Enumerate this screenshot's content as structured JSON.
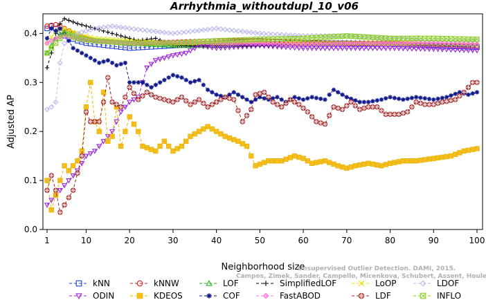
{
  "chart_data": {
    "type": "line",
    "title": "Arrhythmia_withoutdupl_10_v06",
    "xlabel": "Neighborhood size",
    "ylabel": "Adjusted AP",
    "xlim": [
      1,
      100
    ],
    "ylim": [
      0,
      0.44
    ],
    "xticks": [
      1,
      10,
      20,
      30,
      40,
      50,
      60,
      70,
      80,
      90,
      100
    ],
    "yticks": [
      0.0,
      0.1,
      0.2,
      0.3,
      0.4
    ],
    "ytick_labels": [
      "0.0",
      "0.1",
      "0.2",
      "0.3",
      "0.4"
    ],
    "grid": false,
    "legend_position": "bottom",
    "watermark": [
      "Unsupervised Outlier Detection. DAMI, 2015.",
      "Campos, Zimek, Sander, Campello, Micenkova, Schubert, Assent, Houle"
    ],
    "series": [
      {
        "name": "kNN",
        "color": "#1f3fdc",
        "marker": "square",
        "keypoints": [
          [
            1,
            0.41
          ],
          [
            2,
            0.415
          ],
          [
            3,
            0.41
          ],
          [
            5,
            0.395
          ],
          [
            8,
            0.385
          ],
          [
            10,
            0.38
          ],
          [
            15,
            0.375
          ],
          [
            20,
            0.37
          ],
          [
            30,
            0.375
          ],
          [
            40,
            0.38
          ],
          [
            50,
            0.385
          ],
          [
            60,
            0.38
          ],
          [
            70,
            0.38
          ],
          [
            80,
            0.378
          ],
          [
            90,
            0.375
          ],
          [
            100,
            0.372
          ]
        ]
      },
      {
        "name": "kNNW",
        "color": "#d62020",
        "marker": "circle",
        "keypoints": [
          [
            1,
            0.415
          ],
          [
            3,
            0.418
          ],
          [
            5,
            0.41
          ],
          [
            8,
            0.395
          ],
          [
            12,
            0.385
          ],
          [
            20,
            0.38
          ],
          [
            30,
            0.382
          ],
          [
            40,
            0.385
          ],
          [
            50,
            0.385
          ],
          [
            60,
            0.382
          ],
          [
            70,
            0.38
          ],
          [
            80,
            0.38
          ],
          [
            90,
            0.378
          ],
          [
            100,
            0.375
          ]
        ]
      },
      {
        "name": "LOF",
        "color": "#22b022",
        "marker": "triangle",
        "keypoints": [
          [
            1,
            0.36
          ],
          [
            3,
            0.39
          ],
          [
            5,
            0.405
          ],
          [
            8,
            0.395
          ],
          [
            12,
            0.385
          ],
          [
            20,
            0.38
          ],
          [
            30,
            0.375
          ],
          [
            40,
            0.375
          ],
          [
            50,
            0.378
          ],
          [
            60,
            0.38
          ],
          [
            70,
            0.382
          ],
          [
            80,
            0.38
          ],
          [
            90,
            0.38
          ],
          [
            100,
            0.378
          ]
        ]
      },
      {
        "name": "SimplifiedLOF",
        "color": "#000000",
        "marker": "plus",
        "keypoints": [
          [
            1,
            0.33
          ],
          [
            2,
            0.36
          ],
          [
            3,
            0.4
          ],
          [
            4,
            0.42
          ],
          [
            5,
            0.43
          ],
          [
            8,
            0.42
          ],
          [
            12,
            0.41
          ],
          [
            18,
            0.395
          ],
          [
            22,
            0.385
          ],
          [
            26,
            0.39
          ],
          [
            30,
            0.375
          ],
          [
            40,
            0.375
          ],
          [
            50,
            0.375
          ],
          [
            60,
            0.377
          ],
          [
            70,
            0.38
          ],
          [
            80,
            0.38
          ],
          [
            90,
            0.378
          ],
          [
            100,
            0.378
          ]
        ]
      },
      {
        "name": "LoOP",
        "color": "#e8e000",
        "marker": "x",
        "keypoints": [
          [
            1,
            0.38
          ],
          [
            3,
            0.405
          ],
          [
            5,
            0.41
          ],
          [
            8,
            0.4
          ],
          [
            12,
            0.39
          ],
          [
            20,
            0.385
          ],
          [
            30,
            0.38
          ],
          [
            40,
            0.38
          ],
          [
            50,
            0.382
          ],
          [
            60,
            0.38
          ],
          [
            70,
            0.38
          ],
          [
            80,
            0.38
          ],
          [
            90,
            0.382
          ],
          [
            100,
            0.38
          ]
        ]
      },
      {
        "name": "LDOF",
        "color": "#b8b8f0",
        "marker": "diamond",
        "keypoints": [
          [
            1,
            0.245
          ],
          [
            2,
            0.25
          ],
          [
            3,
            0.26
          ],
          [
            4,
            0.34
          ],
          [
            5,
            0.38
          ],
          [
            8,
            0.4
          ],
          [
            12,
            0.41
          ],
          [
            16,
            0.415
          ],
          [
            20,
            0.41
          ],
          [
            25,
            0.405
          ],
          [
            30,
            0.4
          ],
          [
            35,
            0.405
          ],
          [
            40,
            0.41
          ],
          [
            50,
            0.4
          ],
          [
            60,
            0.395
          ],
          [
            70,
            0.395
          ],
          [
            80,
            0.39
          ],
          [
            90,
            0.385
          ],
          [
            100,
            0.385
          ]
        ]
      },
      {
        "name": "ODIN",
        "color": "#9a22d6",
        "marker": "triangle-down",
        "keypoints": [
          [
            1,
            0.05
          ],
          [
            2,
            0.06
          ],
          [
            4,
            0.08
          ],
          [
            6,
            0.1
          ],
          [
            8,
            0.12
          ],
          [
            10,
            0.15
          ],
          [
            12,
            0.16
          ],
          [
            14,
            0.18
          ],
          [
            16,
            0.2
          ],
          [
            18,
            0.24
          ],
          [
            20,
            0.26
          ],
          [
            22,
            0.27
          ],
          [
            23,
            0.3
          ],
          [
            24,
            0.33
          ],
          [
            26,
            0.345
          ],
          [
            30,
            0.355
          ],
          [
            33,
            0.36
          ],
          [
            36,
            0.375
          ],
          [
            40,
            0.37
          ],
          [
            50,
            0.375
          ],
          [
            60,
            0.37
          ],
          [
            70,
            0.37
          ],
          [
            80,
            0.37
          ],
          [
            90,
            0.368
          ],
          [
            100,
            0.365
          ]
        ]
      },
      {
        "name": "KDEOS",
        "color": "#f0b400",
        "marker": "square-x",
        "keypoints": [
          [
            1,
            0.1
          ],
          [
            2,
            0.04
          ],
          [
            3,
            0.07
          ],
          [
            4,
            0.1
          ],
          [
            5,
            0.13
          ],
          [
            6,
            0.12
          ],
          [
            8,
            0.14
          ],
          [
            9,
            0.16
          ],
          [
            10,
            0.25
          ],
          [
            11,
            0.3
          ],
          [
            12,
            0.22
          ],
          [
            13,
            0.2
          ],
          [
            14,
            0.28
          ],
          [
            15,
            0.18
          ],
          [
            16,
            0.19
          ],
          [
            17,
            0.25
          ],
          [
            18,
            0.17
          ],
          [
            20,
            0.23
          ],
          [
            22,
            0.2
          ],
          [
            23,
            0.17
          ],
          [
            26,
            0.16
          ],
          [
            28,
            0.18
          ],
          [
            30,
            0.16
          ],
          [
            32,
            0.17
          ],
          [
            34,
            0.19
          ],
          [
            36,
            0.2
          ],
          [
            38,
            0.21
          ],
          [
            40,
            0.2
          ],
          [
            42,
            0.19
          ],
          [
            45,
            0.18
          ],
          [
            47,
            0.17
          ],
          [
            49,
            0.13
          ],
          [
            52,
            0.14
          ],
          [
            55,
            0.14
          ],
          [
            58,
            0.15
          ],
          [
            60,
            0.145
          ],
          [
            62,
            0.135
          ],
          [
            65,
            0.14
          ],
          [
            68,
            0.13
          ],
          [
            70,
            0.125
          ],
          [
            72,
            0.13
          ],
          [
            75,
            0.135
          ],
          [
            78,
            0.13
          ],
          [
            80,
            0.135
          ],
          [
            83,
            0.14
          ],
          [
            86,
            0.14
          ],
          [
            90,
            0.145
          ],
          [
            94,
            0.15
          ],
          [
            97,
            0.16
          ],
          [
            100,
            0.165
          ]
        ]
      },
      {
        "name": "COF",
        "color": "#101a8c",
        "marker": "star",
        "keypoints": [
          [
            1,
            0.39
          ],
          [
            2,
            0.41
          ],
          [
            3,
            0.405
          ],
          [
            4,
            0.41
          ],
          [
            5,
            0.4
          ],
          [
            7,
            0.37
          ],
          [
            9,
            0.36
          ],
          [
            11,
            0.35
          ],
          [
            13,
            0.34
          ],
          [
            15,
            0.345
          ],
          [
            17,
            0.335
          ],
          [
            19,
            0.34
          ],
          [
            20,
            0.3
          ],
          [
            23,
            0.3
          ],
          [
            25,
            0.29
          ],
          [
            28,
            0.305
          ],
          [
            30,
            0.315
          ],
          [
            32,
            0.31
          ],
          [
            34,
            0.3
          ],
          [
            36,
            0.305
          ],
          [
            38,
            0.285
          ],
          [
            40,
            0.275
          ],
          [
            42,
            0.27
          ],
          [
            44,
            0.28
          ],
          [
            46,
            0.27
          ],
          [
            48,
            0.26
          ],
          [
            50,
            0.27
          ],
          [
            52,
            0.265
          ],
          [
            54,
            0.27
          ],
          [
            56,
            0.26
          ],
          [
            58,
            0.27
          ],
          [
            60,
            0.265
          ],
          [
            62,
            0.27
          ],
          [
            65,
            0.265
          ],
          [
            67,
            0.285
          ],
          [
            70,
            0.27
          ],
          [
            73,
            0.26
          ],
          [
            75,
            0.26
          ],
          [
            78,
            0.265
          ],
          [
            80,
            0.27
          ],
          [
            83,
            0.265
          ],
          [
            86,
            0.27
          ],
          [
            90,
            0.265
          ],
          [
            93,
            0.27
          ],
          [
            96,
            0.28
          ],
          [
            98,
            0.275
          ],
          [
            100,
            0.28
          ]
        ]
      },
      {
        "name": "FastABOD",
        "color": "#ff70e0",
        "marker": "diamond-filled",
        "keypoints": [
          [
            1,
            0.38
          ],
          [
            3,
            0.39
          ],
          [
            5,
            0.395
          ],
          [
            8,
            0.39
          ],
          [
            12,
            0.385
          ],
          [
            20,
            0.38
          ],
          [
            30,
            0.382
          ],
          [
            40,
            0.38
          ],
          [
            50,
            0.38
          ],
          [
            60,
            0.378
          ],
          [
            70,
            0.38
          ],
          [
            80,
            0.38
          ],
          [
            90,
            0.38
          ],
          [
            100,
            0.378
          ]
        ]
      },
      {
        "name": "LDF",
        "color": "#a02020",
        "marker": "circle-plus",
        "keypoints": [
          [
            1,
            0.08
          ],
          [
            2,
            0.11
          ],
          [
            3,
            0.08
          ],
          [
            4,
            0.035
          ],
          [
            5,
            0.05
          ],
          [
            7,
            0.08
          ],
          [
            9,
            0.15
          ],
          [
            10,
            0.24
          ],
          [
            11,
            0.22
          ],
          [
            13,
            0.22
          ],
          [
            14,
            0.26
          ],
          [
            15,
            0.31
          ],
          [
            16,
            0.26
          ],
          [
            18,
            0.25
          ],
          [
            20,
            0.29
          ],
          [
            22,
            0.265
          ],
          [
            24,
            0.28
          ],
          [
            26,
            0.27
          ],
          [
            28,
            0.265
          ],
          [
            30,
            0.26
          ],
          [
            32,
            0.27
          ],
          [
            34,
            0.255
          ],
          [
            36,
            0.265
          ],
          [
            38,
            0.25
          ],
          [
            40,
            0.26
          ],
          [
            42,
            0.27
          ],
          [
            44,
            0.265
          ],
          [
            46,
            0.22
          ],
          [
            48,
            0.245
          ],
          [
            49,
            0.275
          ],
          [
            51,
            0.28
          ],
          [
            53,
            0.26
          ],
          [
            55,
            0.25
          ],
          [
            57,
            0.265
          ],
          [
            59,
            0.255
          ],
          [
            61,
            0.24
          ],
          [
            63,
            0.22
          ],
          [
            65,
            0.215
          ],
          [
            67,
            0.25
          ],
          [
            69,
            0.245
          ],
          [
            71,
            0.26
          ],
          [
            73,
            0.245
          ],
          [
            75,
            0.25
          ],
          [
            77,
            0.25
          ],
          [
            79,
            0.235
          ],
          [
            82,
            0.235
          ],
          [
            84,
            0.24
          ],
          [
            86,
            0.26
          ],
          [
            88,
            0.255
          ],
          [
            90,
            0.255
          ],
          [
            92,
            0.26
          ],
          [
            95,
            0.265
          ],
          [
            97,
            0.28
          ],
          [
            99,
            0.3
          ],
          [
            100,
            0.3
          ]
        ]
      },
      {
        "name": "INFLO",
        "color": "#8ad020",
        "marker": "asterisk-box",
        "keypoints": [
          [
            1,
            0.36
          ],
          [
            3,
            0.38
          ],
          [
            5,
            0.4
          ],
          [
            8,
            0.39
          ],
          [
            12,
            0.385
          ],
          [
            20,
            0.38
          ],
          [
            30,
            0.38
          ],
          [
            40,
            0.385
          ],
          [
            50,
            0.388
          ],
          [
            60,
            0.39
          ],
          [
            70,
            0.395
          ],
          [
            80,
            0.39
          ],
          [
            90,
            0.39
          ],
          [
            100,
            0.388
          ]
        ]
      }
    ]
  }
}
